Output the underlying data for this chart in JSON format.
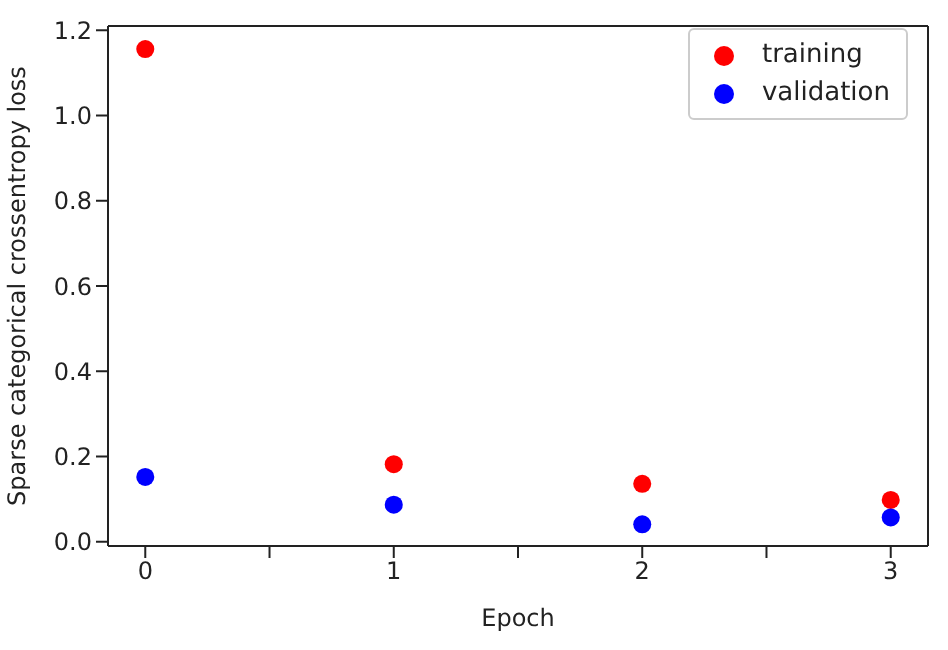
{
  "chart_data": {
    "type": "scatter",
    "xlabel": "Epoch",
    "ylabel": "Sparse categorical crossentropy loss",
    "x": [
      0,
      1,
      2,
      3
    ],
    "series": [
      {
        "name": "training",
        "color": "#ff0000",
        "values": [
          1.156,
          0.182,
          0.136,
          0.098
        ]
      },
      {
        "name": "validation",
        "color": "#0000ff",
        "values": [
          0.152,
          0.087,
          0.041,
          0.057
        ]
      }
    ],
    "xlim": [
      -0.15,
      3.15
    ],
    "xticks": [
      0,
      {
        "value": 0.5,
        "label": null
      },
      1,
      {
        "value": 1.5,
        "label": null
      },
      2,
      {
        "value": 2.5,
        "label": null
      },
      3
    ],
    "ylim": [
      -0.01,
      1.21
    ],
    "yticks": [
      {
        "value": 0,
        "label": "0.0"
      },
      {
        "value": 0.2,
        "label": "0.2"
      },
      {
        "value": 0.4,
        "label": "0.4"
      },
      {
        "value": 0.6,
        "label": "0.6"
      },
      {
        "value": 0.8,
        "label": "0.8"
      },
      {
        "value": 1,
        "label": "1.0"
      },
      {
        "value": 1.2,
        "label": "1.2"
      }
    ],
    "legend": "top right",
    "marker": "circle",
    "grid": false
  }
}
